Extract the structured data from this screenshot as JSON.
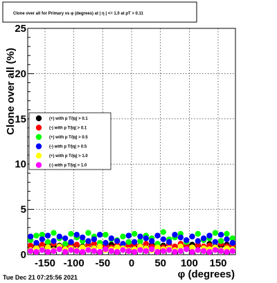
{
  "chart_data": {
    "type": "scatter",
    "title": "Clone  over all for Primary vs φ (degrees) at | η | <= 1.0 at pT > 0.11",
    "xlabel": "φ (degrees)",
    "ylabel": "Clone  over all (%)",
    "xlim": [
      -180,
      180
    ],
    "ylim": [
      0,
      25
    ],
    "x_ticks": [
      -150,
      -100,
      -50,
      0,
      50,
      100,
      150
    ],
    "y_ticks": [
      0,
      5,
      10,
      15,
      20,
      25
    ],
    "grid": true,
    "legend_position": "left-middle",
    "timestamp": "Tue Dec 21 07:25:56 2021",
    "x": [
      -175,
      -165,
      -155,
      -145,
      -135,
      -125,
      -115,
      -105,
      -95,
      -85,
      -75,
      -65,
      -55,
      -45,
      -35,
      -25,
      -15,
      -5,
      5,
      15,
      25,
      35,
      45,
      55,
      65,
      75,
      85,
      95,
      105,
      115,
      125,
      135,
      145,
      155,
      165,
      175
    ],
    "series": [
      {
        "name": "(+) with p T/|q| > 0.1",
        "color": "#000000",
        "values": [
          0.9,
          1.0,
          0.8,
          1.1,
          0.9,
          1.0,
          0.8,
          1.2,
          1.0,
          0.9,
          1.1,
          0.8,
          1.0,
          0.9,
          1.1,
          1.0,
          0.8,
          1.2,
          0.9,
          1.0,
          0.8,
          1.1,
          0.9,
          1.0,
          1.2,
          0.8,
          1.0,
          0.9,
          1.1,
          1.0,
          0.8,
          1.2,
          0.9,
          1.0,
          1.1,
          0.9
        ]
      },
      {
        "name": "(-) with p T/|q| > 0.1",
        "color": "#ff0000",
        "values": [
          1.0,
          0.8,
          1.1,
          0.9,
          1.2,
          0.8,
          1.0,
          0.9,
          1.1,
          0.8,
          1.0,
          1.2,
          0.9,
          1.0,
          0.8,
          1.1,
          0.9,
          1.0,
          1.1,
          0.8,
          1.2,
          0.9,
          1.0,
          0.8,
          1.1,
          0.9,
          1.2,
          1.0,
          0.8,
          1.1,
          0.9,
          1.0,
          0.8,
          1.2,
          0.9,
          1.0
        ]
      },
      {
        "name": "(+) with p T/|q| > 0.5",
        "color": "#00ff00",
        "values": [
          1.6,
          2.1,
          2.2,
          1.4,
          2.4,
          1.8,
          1.2,
          2.3,
          1.9,
          1.5,
          2.4,
          2.0,
          1.3,
          2.2,
          1.7,
          1.6,
          2.0,
          1.4,
          2.3,
          1.5,
          2.1,
          1.8,
          1.2,
          2.5,
          1.7,
          1.9,
          2.3,
          1.4,
          2.0,
          2.3,
          1.6,
          1.8,
          2.4,
          1.5,
          2.3,
          1.8
        ]
      },
      {
        "name": "(-) with p T/|q| > 0.5",
        "color": "#0000ff",
        "values": [
          2.0,
          1.3,
          1.7,
          2.1,
          1.5,
          2.0,
          1.8,
          1.4,
          2.2,
          1.9,
          1.5,
          1.7,
          2.2,
          1.3,
          1.8,
          1.5,
          1.2,
          2.1,
          1.4,
          2.0,
          1.8,
          1.5,
          2.1,
          1.7,
          1.4,
          2.2,
          1.9,
          1.6,
          2.0,
          1.5,
          1.8,
          2.1,
          1.4,
          2.2,
          1.7,
          1.3
        ]
      },
      {
        "name": "(+) with p T/|q| > 1.0",
        "color": "#ffff00",
        "values": [
          0.5,
          0.7,
          0.6,
          0.8,
          0.5,
          0.9,
          0.6,
          0.7,
          0.5,
          0.8,
          0.6,
          0.7,
          0.9,
          0.5,
          0.6,
          0.8,
          0.7,
          0.5,
          0.6,
          0.9,
          0.7,
          0.5,
          0.8,
          0.6,
          0.7,
          0.5,
          0.9,
          0.6,
          0.8,
          0.5,
          0.7,
          0.6,
          0.8,
          0.5,
          0.7,
          0.6
        ]
      },
      {
        "name": "(-) with p T/|q| > 1.0",
        "color": "#ff00ff",
        "values": [
          0.4,
          0.3,
          0.5,
          0.3,
          0.4,
          0.6,
          0.3,
          0.5,
          0.4,
          0.3,
          0.5,
          0.4,
          0.3,
          0.6,
          0.4,
          0.3,
          0.5,
          0.4,
          0.3,
          0.5,
          0.4,
          0.6,
          0.3,
          0.4,
          0.5,
          0.3,
          0.4,
          0.6,
          0.3,
          0.5,
          0.4,
          0.3,
          0.5,
          0.4,
          0.3,
          0.4
        ]
      }
    ]
  }
}
